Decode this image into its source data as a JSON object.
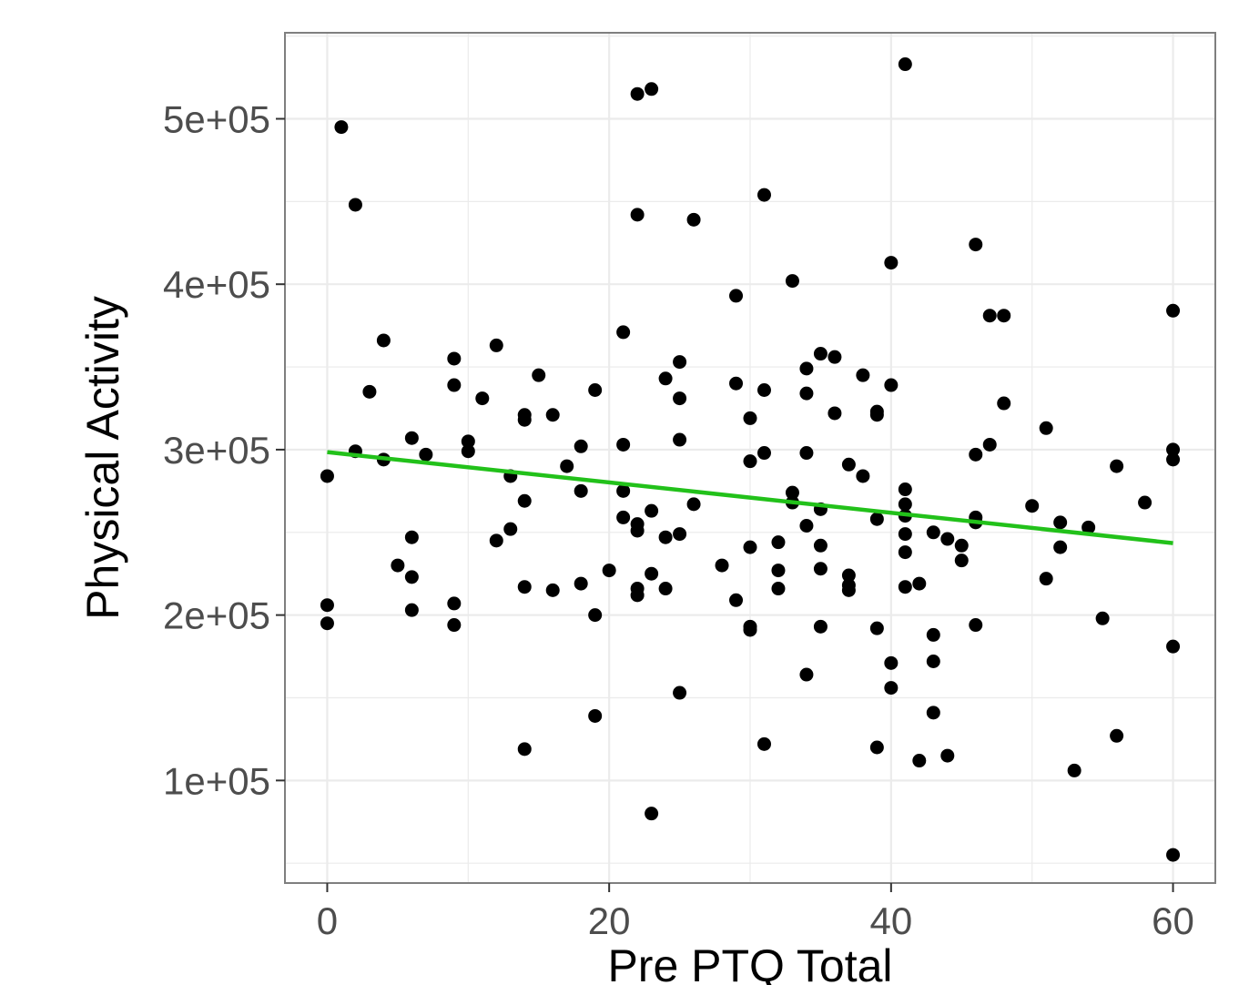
{
  "chart_data": {
    "type": "scatter",
    "title": "",
    "xlabel": "Pre PTQ Total",
    "ylabel": "Physical Activity",
    "xlim": [
      -3,
      63
    ],
    "ylim": [
      38000,
      552000
    ],
    "x_ticks": [
      0,
      20,
      40,
      60
    ],
    "x_tick_labels": [
      "0",
      "20",
      "40",
      "60"
    ],
    "y_ticks": [
      100000,
      200000,
      300000,
      400000,
      500000
    ],
    "y_tick_labels": [
      "1e+05",
      "2e+05",
      "3e+05",
      "4e+05",
      "5e+05"
    ],
    "grid": true,
    "theme": "white background with light gray grid and dark gray panel border",
    "colors": {
      "points": "#000000",
      "trend": "#22c11a",
      "grid": "#ebebeb",
      "border": "#7f7f7f"
    },
    "trend_line": {
      "x": [
        0,
        60
      ],
      "y": [
        298500,
        243500
      ]
    },
    "points": [
      [
        0,
        284000
      ],
      [
        0,
        206000
      ],
      [
        0,
        195000
      ],
      [
        1,
        495000
      ],
      [
        2,
        448000
      ],
      [
        2,
        299000
      ],
      [
        3,
        335000
      ],
      [
        4,
        366000
      ],
      [
        4,
        294000
      ],
      [
        5,
        230000
      ],
      [
        6,
        307000
      ],
      [
        6,
        247000
      ],
      [
        6,
        223000
      ],
      [
        6,
        203000
      ],
      [
        7,
        297000
      ],
      [
        9,
        355000
      ],
      [
        9,
        339000
      ],
      [
        9,
        207000
      ],
      [
        9,
        194000
      ],
      [
        10,
        305000
      ],
      [
        10,
        299000
      ],
      [
        11,
        331000
      ],
      [
        12,
        363000
      ],
      [
        12,
        245000
      ],
      [
        13,
        284000
      ],
      [
        13,
        252000
      ],
      [
        14,
        321000
      ],
      [
        14,
        318000
      ],
      [
        14,
        269000
      ],
      [
        14,
        217000
      ],
      [
        14,
        119000
      ],
      [
        15,
        345000
      ],
      [
        16,
        321000
      ],
      [
        16,
        215000
      ],
      [
        17,
        290000
      ],
      [
        18,
        302000
      ],
      [
        18,
        275000
      ],
      [
        18,
        219000
      ],
      [
        19,
        336000
      ],
      [
        19,
        200000
      ],
      [
        19,
        139000
      ],
      [
        20,
        227000
      ],
      [
        21,
        371000
      ],
      [
        21,
        303000
      ],
      [
        21,
        275000
      ],
      [
        21,
        259000
      ],
      [
        22,
        515000
      ],
      [
        22,
        442000
      ],
      [
        22,
        255000
      ],
      [
        22,
        251000
      ],
      [
        22,
        216000
      ],
      [
        22,
        212000
      ],
      [
        23,
        518000
      ],
      [
        23,
        263000
      ],
      [
        23,
        225000
      ],
      [
        23,
        80000
      ],
      [
        24,
        343000
      ],
      [
        24,
        247000
      ],
      [
        24,
        216000
      ],
      [
        25,
        353000
      ],
      [
        25,
        331000
      ],
      [
        25,
        306000
      ],
      [
        25,
        249000
      ],
      [
        25,
        153000
      ],
      [
        26,
        439000
      ],
      [
        26,
        267000
      ],
      [
        28,
        230000
      ],
      [
        29,
        393000
      ],
      [
        29,
        340000
      ],
      [
        29,
        209000
      ],
      [
        30,
        319000
      ],
      [
        30,
        293000
      ],
      [
        30,
        241000
      ],
      [
        30,
        193000
      ],
      [
        30,
        191000
      ],
      [
        31,
        454000
      ],
      [
        31,
        336000
      ],
      [
        31,
        298000
      ],
      [
        31,
        122000
      ],
      [
        32,
        244000
      ],
      [
        32,
        227000
      ],
      [
        32,
        216000
      ],
      [
        33,
        402000
      ],
      [
        33,
        274000
      ],
      [
        33,
        268000
      ],
      [
        34,
        349000
      ],
      [
        34,
        334000
      ],
      [
        34,
        298000
      ],
      [
        34,
        254000
      ],
      [
        34,
        164000
      ],
      [
        35,
        358000
      ],
      [
        35,
        264000
      ],
      [
        35,
        242000
      ],
      [
        35,
        228000
      ],
      [
        35,
        193000
      ],
      [
        36,
        356000
      ],
      [
        36,
        322000
      ],
      [
        37,
        291000
      ],
      [
        37,
        224000
      ],
      [
        37,
        218000
      ],
      [
        37,
        215000
      ],
      [
        38,
        345000
      ],
      [
        38,
        284000
      ],
      [
        39,
        323000
      ],
      [
        39,
        321000
      ],
      [
        39,
        258000
      ],
      [
        39,
        192000
      ],
      [
        39,
        120000
      ],
      [
        40,
        413000
      ],
      [
        40,
        339000
      ],
      [
        40,
        171000
      ],
      [
        40,
        156000
      ],
      [
        41,
        533000
      ],
      [
        41,
        276000
      ],
      [
        41,
        267000
      ],
      [
        41,
        260000
      ],
      [
        41,
        249000
      ],
      [
        41,
        238000
      ],
      [
        41,
        217000
      ],
      [
        42,
        219000
      ],
      [
        42,
        112000
      ],
      [
        43,
        250000
      ],
      [
        43,
        188000
      ],
      [
        43,
        172000
      ],
      [
        43,
        141000
      ],
      [
        44,
        246000
      ],
      [
        44,
        115000
      ],
      [
        45,
        242000
      ],
      [
        45,
        233000
      ],
      [
        46,
        424000
      ],
      [
        46,
        297000
      ],
      [
        46,
        259000
      ],
      [
        46,
        256000
      ],
      [
        46,
        194000
      ],
      [
        47,
        381000
      ],
      [
        47,
        303000
      ],
      [
        48,
        381000
      ],
      [
        48,
        328000
      ],
      [
        50,
        266000
      ],
      [
        51,
        313000
      ],
      [
        51,
        222000
      ],
      [
        52,
        256000
      ],
      [
        52,
        241000
      ],
      [
        53,
        106000
      ],
      [
        54,
        253000
      ],
      [
        55,
        198000
      ],
      [
        56,
        290000
      ],
      [
        56,
        127000
      ],
      [
        58,
        268000
      ],
      [
        60,
        384000
      ],
      [
        60,
        300000
      ],
      [
        60,
        294000
      ],
      [
        60,
        181000
      ],
      [
        60,
        55000
      ]
    ]
  }
}
